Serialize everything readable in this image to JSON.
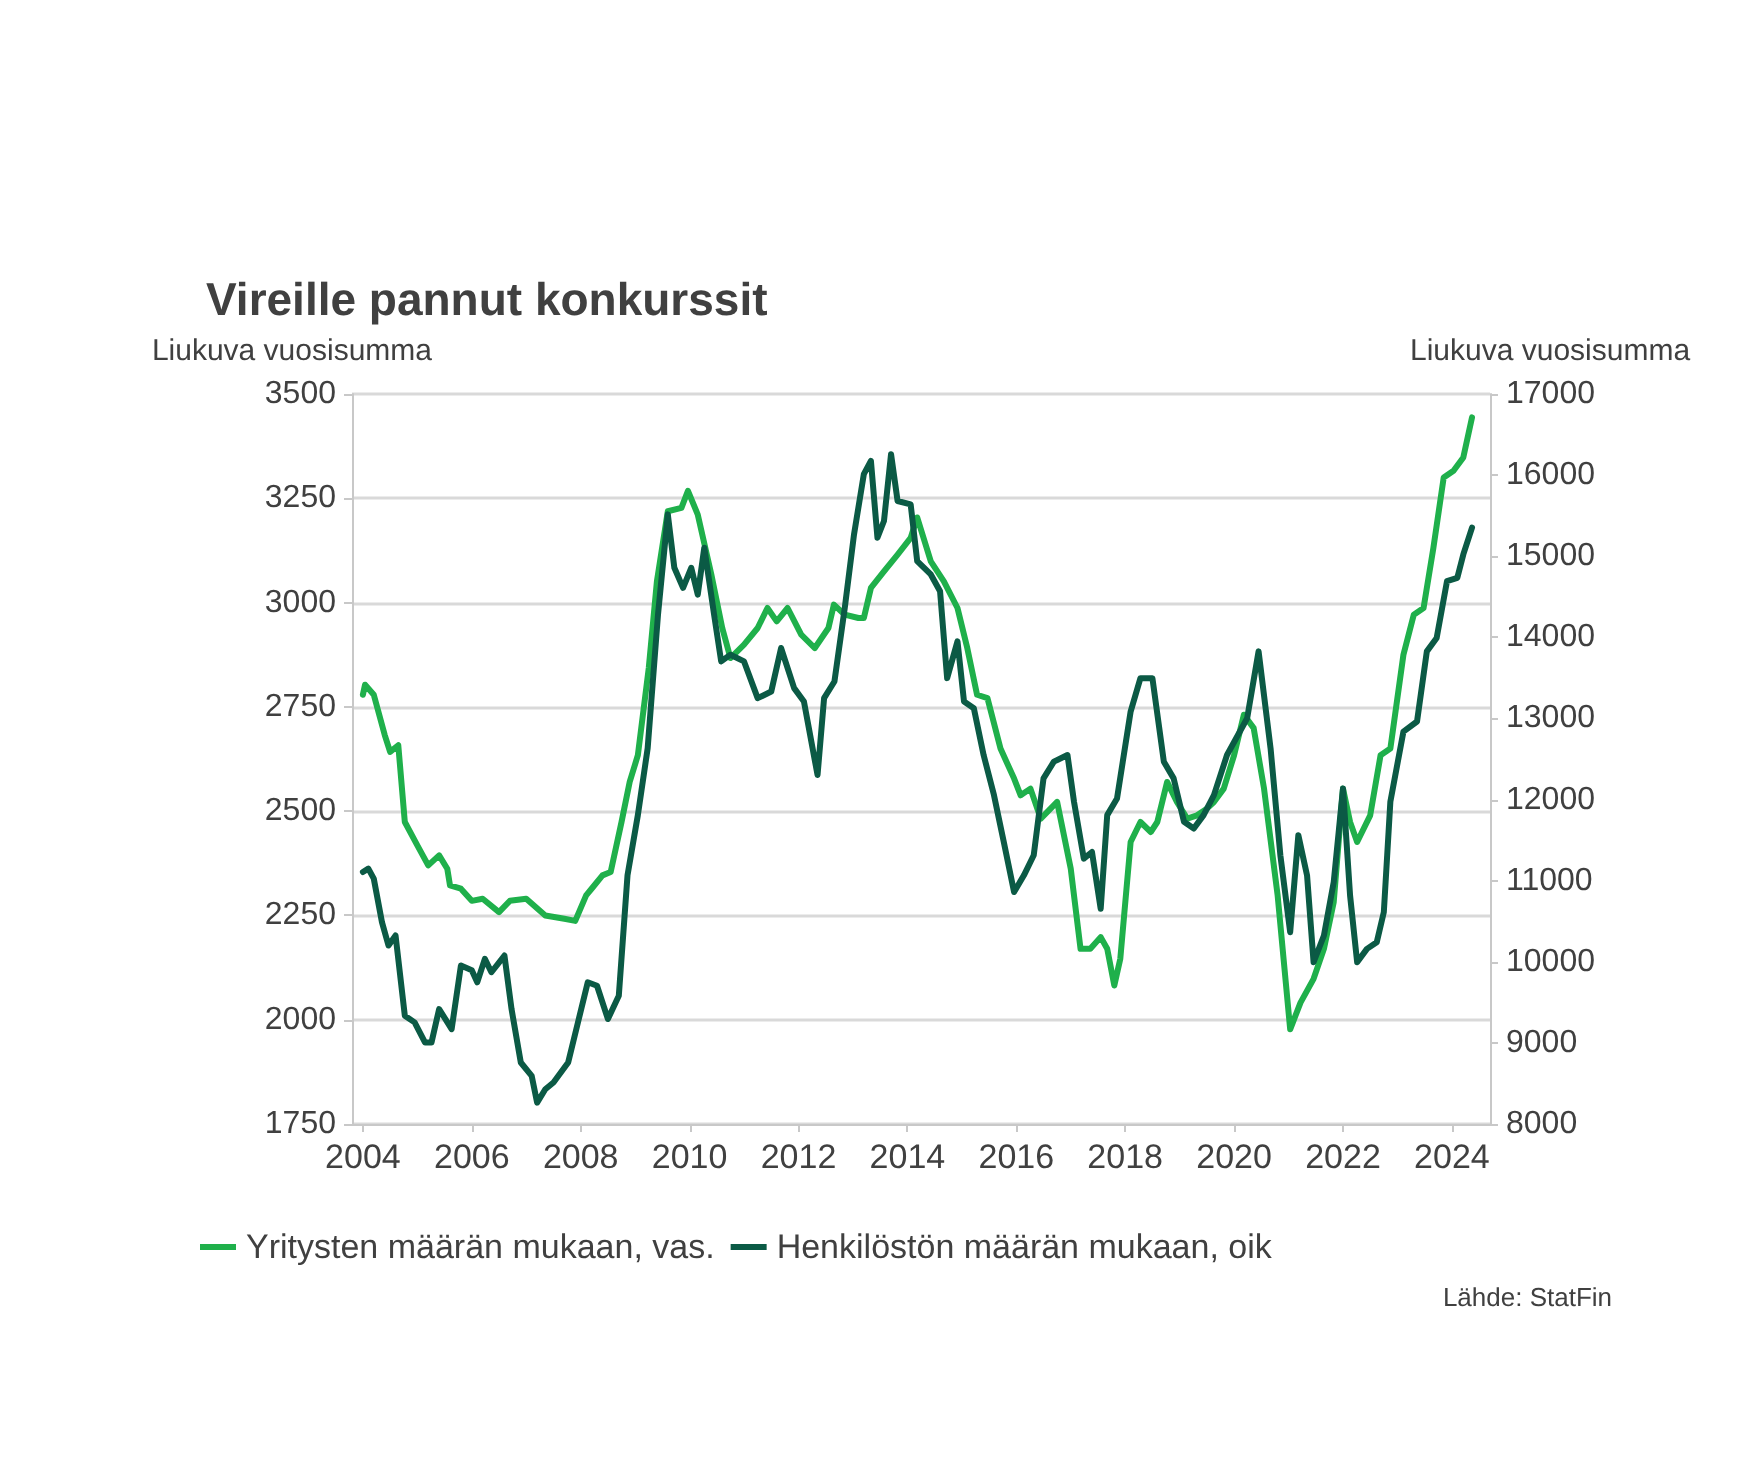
{
  "chart_data": {
    "type": "line",
    "title": "Vireille pannut konkurssit",
    "ylabel": "Liukuva vuosisumma",
    "y2label": "Liukuva vuosisumma",
    "annotations": [
      "Lähde: StatFin"
    ],
    "xlim": [
      2003.8,
      2024.7
    ],
    "xticks": [
      2004,
      2006,
      2008,
      2010,
      2012,
      2014,
      2016,
      2018,
      2020,
      2022,
      2024
    ],
    "ylim": [
      1750,
      3500
    ],
    "yticks": [
      1750,
      2000,
      2250,
      2500,
      2750,
      3000,
      3250,
      3500
    ],
    "y2lim": [
      8000,
      17000
    ],
    "y2ticks": [
      8000,
      9000,
      10000,
      11000,
      12000,
      13000,
      14000,
      15000,
      16000,
      17000
    ],
    "grid": "y",
    "legend": "bottom",
    "marker": "none",
    "line_style": "solid",
    "series": [
      {
        "name": "Yritysten määrän mukaan, vas.",
        "color": "#1fb04b",
        "x": [
          2004.0,
          2004.04,
          2004.2,
          2004.4,
          2004.5,
          2004.65,
          2004.77,
          2005.0,
          2005.2,
          2005.4,
          2005.55,
          2005.6,
          2005.8,
          2006.0,
          2006.2,
          2006.5,
          2006.7,
          2007.0,
          2007.35,
          2007.7,
          2007.9,
          2008.1,
          2008.2,
          2008.4,
          2008.55,
          2008.75,
          2008.9,
          2009.05,
          2009.25,
          2009.4,
          2009.6,
          2009.85,
          2009.97,
          2010.15,
          2010.4,
          2010.6,
          2010.75,
          2011.0,
          2011.25,
          2011.43,
          2011.6,
          2011.8,
          2012.05,
          2012.3,
          2012.55,
          2012.65,
          2012.85,
          2013.1,
          2013.2,
          2013.33,
          2013.57,
          2013.82,
          2014.06,
          2014.18,
          2014.43,
          2014.67,
          2014.92,
          2015.1,
          2015.28,
          2015.47,
          2015.71,
          2015.96,
          2016.08,
          2016.26,
          2016.45,
          2016.75,
          2017.0,
          2017.18,
          2017.36,
          2017.55,
          2017.67,
          2017.8,
          2017.91,
          2018.1,
          2018.28,
          2018.47,
          2018.59,
          2018.77,
          2018.95,
          2019.14,
          2019.32,
          2019.5,
          2019.63,
          2019.81,
          2020.0,
          2020.18,
          2020.36,
          2020.55,
          2020.8,
          2021.03,
          2021.22,
          2021.46,
          2021.65,
          2021.83,
          2022.0,
          2022.13,
          2022.26,
          2022.5,
          2022.69,
          2022.87,
          2023.11,
          2023.3,
          2023.48,
          2023.66,
          2023.85,
          2024.03,
          2024.21,
          2024.37
        ],
        "values": [
          2779,
          2803,
          2779,
          2683,
          2642,
          2658,
          2474,
          2418,
          2370,
          2394,
          2362,
          2322,
          2314,
          2285,
          2290,
          2258,
          2285,
          2290,
          2250,
          2242,
          2237,
          2298,
          2314,
          2346,
          2354,
          2474,
          2570,
          2634,
          2843,
          3051,
          3219,
          3227,
          3268,
          3211,
          3067,
          2939,
          2867,
          2899,
          2939,
          2987,
          2955,
          2987,
          2923,
          2891,
          2939,
          2995,
          2971,
          2963,
          2963,
          3035,
          3075,
          3115,
          3155,
          3204,
          3099,
          3051,
          2987,
          2891,
          2779,
          2771,
          2650,
          2578,
          2538,
          2554,
          2482,
          2522,
          2362,
          2170,
          2170,
          2198,
          2170,
          2082,
          2146,
          2426,
          2474,
          2450,
          2474,
          2570,
          2522,
          2482,
          2490,
          2506,
          2522,
          2554,
          2634,
          2731,
          2699,
          2554,
          2298,
          1977,
          2041,
          2098,
          2170,
          2282,
          2554,
          2474,
          2426,
          2490,
          2634,
          2650,
          2875,
          2971,
          2987,
          3131,
          3300,
          3316,
          3348,
          3444
        ]
      },
      {
        "name": "Henkilöstön määrän mukaan, oik",
        "color": "#0b5a45",
        "axis": "y2",
        "x": [
          2004.0,
          2004.1,
          2004.2,
          2004.35,
          2004.47,
          2004.6,
          2004.77,
          2004.95,
          2005.14,
          2005.26,
          2005.4,
          2005.63,
          2005.8,
          2006.0,
          2006.1,
          2006.24,
          2006.36,
          2006.6,
          2006.73,
          2006.9,
          2007.1,
          2007.2,
          2007.35,
          2007.5,
          2007.77,
          2007.95,
          2008.13,
          2008.3,
          2008.5,
          2008.7,
          2008.86,
          2009.05,
          2009.23,
          2009.42,
          2009.6,
          2009.72,
          2009.88,
          2010.03,
          2010.15,
          2010.27,
          2010.45,
          2010.58,
          2010.75,
          2011.0,
          2011.25,
          2011.5,
          2011.68,
          2011.92,
          2012.1,
          2012.35,
          2012.47,
          2012.66,
          2012.85,
          2013.02,
          2013.2,
          2013.33,
          2013.45,
          2013.57,
          2013.7,
          2013.82,
          2014.06,
          2014.18,
          2014.43,
          2014.6,
          2014.73,
          2014.92,
          2015.04,
          2015.22,
          2015.4,
          2015.59,
          2015.77,
          2015.96,
          2016.14,
          2016.32,
          2016.5,
          2016.69,
          2016.94,
          2017.06,
          2017.24,
          2017.39,
          2017.55,
          2017.67,
          2017.85,
          2018.1,
          2018.28,
          2018.5,
          2018.71,
          2018.89,
          2019.08,
          2019.26,
          2019.44,
          2019.63,
          2019.87,
          2020.24,
          2020.45,
          2020.67,
          2020.85,
          2021.03,
          2021.18,
          2021.34,
          2021.46,
          2021.65,
          2021.83,
          2022.0,
          2022.13,
          2022.26,
          2022.44,
          2022.62,
          2022.75,
          2022.87,
          2023.11,
          2023.36,
          2023.54,
          2023.72,
          2023.91,
          2024.1,
          2024.21,
          2024.37
        ],
        "values": [
          11107,
          11148,
          11025,
          10489,
          10200,
          10324,
          9335,
          9253,
          9005,
          9005,
          9417,
          9170,
          9953,
          9895,
          9747,
          10035,
          9871,
          10077,
          9417,
          8758,
          8593,
          8263,
          8428,
          8511,
          8758,
          9253,
          9747,
          9705,
          9294,
          9582,
          11066,
          11808,
          12632,
          14280,
          15516,
          14857,
          14610,
          14857,
          14527,
          15104,
          14280,
          13703,
          13786,
          13703,
          13250,
          13332,
          13868,
          13374,
          13209,
          12302,
          13250,
          13456,
          14363,
          15269,
          16011,
          16176,
          15228,
          15434,
          16258,
          15681,
          15640,
          14940,
          14775,
          14569,
          13497,
          13950,
          13209,
          13126,
          12549,
          12055,
          11478,
          10860,
          11066,
          11313,
          12261,
          12467,
          12549,
          11973,
          11272,
          11354,
          10654,
          11808,
          12014,
          13085,
          13497,
          13497,
          12467,
          12261,
          11726,
          11643,
          11808,
          12055,
          12549,
          13003,
          13827,
          12632,
          11313,
          10365,
          11560,
          11066,
          9994,
          10324,
          10983,
          12137,
          10819,
          9994,
          10159,
          10241,
          10612,
          11973,
          12838,
          12962,
          13827,
          13992,
          14692,
          14734,
          15022,
          15352
        ]
      }
    ]
  }
}
